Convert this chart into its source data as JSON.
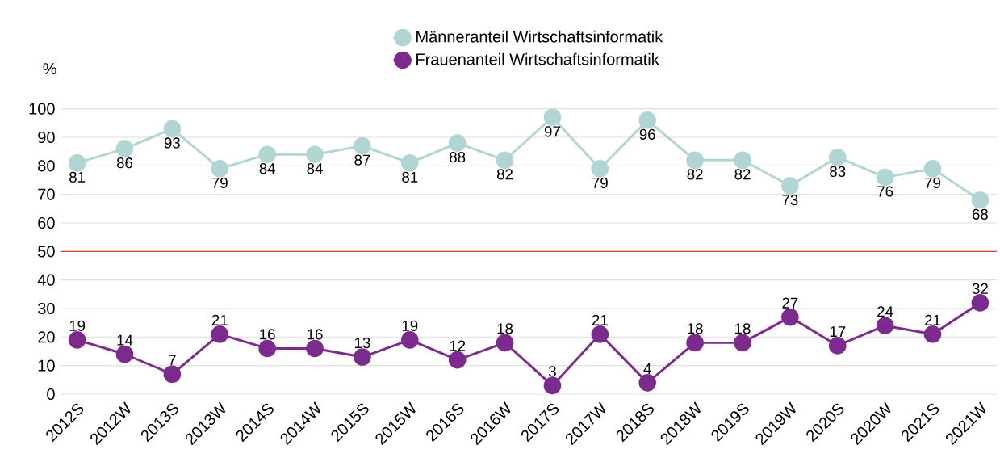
{
  "chart_data": {
    "type": "line",
    "categories": [
      "2012S",
      "2012W",
      "2013S",
      "2013W",
      "2014S",
      "2014W",
      "2015S",
      "2015W",
      "2016S",
      "2016W",
      "2017S",
      "2017W",
      "2018S",
      "2018W",
      "2019S",
      "2019W",
      "2020S",
      "2020W",
      "2021S",
      "2021W"
    ],
    "series": [
      {
        "name": "Männeranteil Wirtschaftsinformatik",
        "color": "#b0d5d3",
        "values": [
          81,
          86,
          93,
          79,
          84,
          84,
          87,
          81,
          88,
          82,
          97,
          79,
          96,
          82,
          82,
          73,
          83,
          76,
          79,
          68
        ]
      },
      {
        "name": "Frauenanteil Wirtschaftsinformatik",
        "color": "#7d2a8e",
        "values": [
          19,
          14,
          7,
          21,
          16,
          16,
          13,
          19,
          12,
          18,
          3,
          21,
          4,
          18,
          18,
          27,
          17,
          24,
          21,
          32
        ]
      }
    ],
    "ylabel": "%",
    "ylim": [
      0,
      100
    ],
    "yticks": [
      0,
      10,
      20,
      30,
      40,
      50,
      60,
      70,
      80,
      90,
      100
    ],
    "grid": "y",
    "legend": "top",
    "marker": "circle",
    "line_style": "solid",
    "data_labels": true,
    "ref_lines": [
      {
        "axis": "y",
        "value": 50,
        "color": "#e03c31"
      }
    ]
  }
}
